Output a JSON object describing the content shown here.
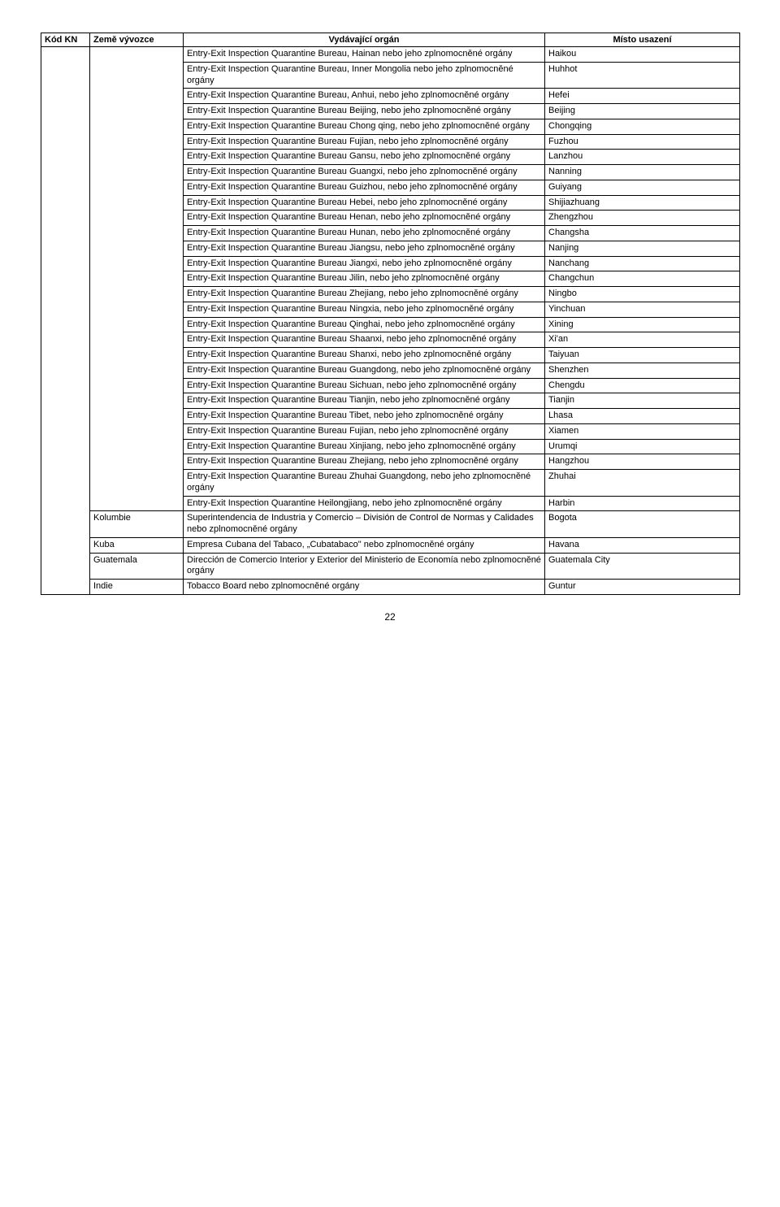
{
  "headers": {
    "kod": "Kód KN",
    "zeme": "Země vývozce",
    "organ": "Vydávající orgán",
    "misto": "Místo usazení"
  },
  "rows": [
    {
      "zeme": "",
      "organ": "Entry-Exit Inspection Quarantine Bureau, Hainan nebo jeho zplnomocněné orgány",
      "misto": "Haikou"
    },
    {
      "zeme": "",
      "organ": "Entry-Exit Inspection Quarantine Bureau, Inner Mongolia nebo jeho zplnomocněné orgány",
      "misto": "Huhhot"
    },
    {
      "zeme": "",
      "organ": "Entry-Exit Inspection Quarantine Bureau, Anhui, nebo jeho zplnomocněné orgány",
      "misto": "Hefei"
    },
    {
      "zeme": "",
      "organ": "Entry-Exit Inspection Quarantine Bureau Beijing, nebo jeho zplnomocněné orgány",
      "misto": "Beijing"
    },
    {
      "zeme": "",
      "organ": "Entry-Exit Inspection Quarantine Bureau Chong qing, nebo jeho zplnomocněné orgány",
      "misto": "Chongqing"
    },
    {
      "zeme": "",
      "organ": "Entry-Exit Inspection Quarantine Bureau Fujian, nebo jeho zplnomocněné orgány",
      "misto": "Fuzhou"
    },
    {
      "zeme": "",
      "organ": "Entry-Exit Inspection Quarantine Bureau Gansu, nebo jeho zplnomocněné orgány",
      "misto": "Lanzhou"
    },
    {
      "zeme": "",
      "organ": "Entry-Exit Inspection Quarantine Bureau Guangxi, nebo jeho zplnomocněné orgány",
      "misto": "Nanning"
    },
    {
      "zeme": "",
      "organ": "Entry-Exit Inspection Quarantine Bureau Guizhou, nebo jeho zplnomocněné orgány",
      "misto": "Guiyang"
    },
    {
      "zeme": "",
      "organ": "Entry-Exit Inspection Quarantine Bureau Hebei, nebo jeho zplnomocněné orgány",
      "misto": "Shijiazhuang"
    },
    {
      "zeme": "",
      "organ": "Entry-Exit Inspection Quarantine Bureau Henan, nebo jeho zplnomocněné orgány",
      "misto": "Zhengzhou"
    },
    {
      "zeme": "",
      "organ": "Entry-Exit Inspection Quarantine Bureau Hunan, nebo jeho zplnomocněné orgány",
      "misto": "Changsha"
    },
    {
      "zeme": "",
      "organ": "Entry-Exit Inspection Quarantine Bureau Jiangsu, nebo jeho zplnomocněné orgány",
      "misto": "Nanjing"
    },
    {
      "zeme": "",
      "organ": "Entry-Exit Inspection Quarantine Bureau Jiangxi, nebo jeho zplnomocněné orgány",
      "misto": "Nanchang"
    },
    {
      "zeme": "",
      "organ": "Entry-Exit Inspection Quarantine Bureau Jilin, nebo jeho zplnomocněné orgány",
      "misto": "Changchun"
    },
    {
      "zeme": "",
      "organ": "Entry-Exit Inspection Quarantine Bureau Zhejiang, nebo jeho zplnomocněné orgány",
      "misto": "Ningbo"
    },
    {
      "zeme": "",
      "organ": "Entry-Exit Inspection Quarantine Bureau Ningxia, nebo jeho zplnomocněné orgány",
      "misto": "Yinchuan"
    },
    {
      "zeme": "",
      "organ": "Entry-Exit Inspection Quarantine Bureau Qinghai, nebo jeho zplnomocněné orgány",
      "misto": "Xining"
    },
    {
      "zeme": "",
      "organ": "Entry-Exit Inspection Quarantine Bureau Shaanxi, nebo jeho zplnomocněné orgány",
      "misto": "Xi'an"
    },
    {
      "zeme": "",
      "organ": "Entry-Exit Inspection Quarantine Bureau Shanxi, nebo jeho zplnomocněné orgány",
      "misto": "Taiyuan"
    },
    {
      "zeme": "",
      "organ": "Entry-Exit Inspection Quarantine Bureau Guangdong, nebo jeho zplnomocněné orgány",
      "misto": "Shenzhen"
    },
    {
      "zeme": "",
      "organ": "Entry-Exit Inspection Quarantine Bureau Sichuan, nebo jeho zplnomocněné orgány",
      "misto": "Chengdu"
    },
    {
      "zeme": "",
      "organ": "Entry-Exit Inspection Quarantine Bureau Tianjin, nebo jeho zplnomocněné orgány",
      "misto": "Tianjin"
    },
    {
      "zeme": "",
      "organ": "Entry-Exit Inspection Quarantine Bureau Tibet, nebo jeho zplnomocněné orgány",
      "misto": "Lhasa"
    },
    {
      "zeme": "",
      "organ": "Entry-Exit Inspection Quarantine Bureau Fujian, nebo jeho zplnomocněné orgány",
      "misto": "Xiamen"
    },
    {
      "zeme": "",
      "organ": "Entry-Exit Inspection Quarantine Bureau Xinjiang, nebo jeho zplnomocněné orgány",
      "misto": "Urumqi"
    },
    {
      "zeme": "",
      "organ": "Entry-Exit Inspection Quarantine Bureau Zhejiang, nebo jeho zplnomocněné orgány",
      "misto": "Hangzhou"
    },
    {
      "zeme": "",
      "organ": "Entry-Exit Inspection Quarantine Bureau Zhuhai Guangdong, nebo jeho zplnomocněné orgány",
      "misto": "Zhuhai"
    },
    {
      "zeme": "",
      "organ": "Entry-Exit Inspection Quarantine Heilongjiang, nebo jeho zplnomocněné orgány",
      "misto": "Harbin"
    },
    {
      "zeme": "Kolumbie",
      "organ": "Superintendencia de Industria y Comercio – División de Control de Normas y Calidades nebo zplnomocněné orgány",
      "misto": "Bogota"
    },
    {
      "zeme": "Kuba",
      "organ": "Empresa Cubana del Tabaco, „Cubatabaco\" nebo zplnomocněné orgány",
      "misto": "Havana"
    },
    {
      "zeme": "Guatemala",
      "organ": "Dirección de Comercio Interior y Exterior del Ministerio de Economía nebo zplnomocněné orgány",
      "misto": "Guatemala City"
    },
    {
      "zeme": "Indie",
      "organ": "Tobacco Board nebo zplnomocněné orgány",
      "misto": "Guntur"
    }
  ],
  "pageNumber": "22"
}
